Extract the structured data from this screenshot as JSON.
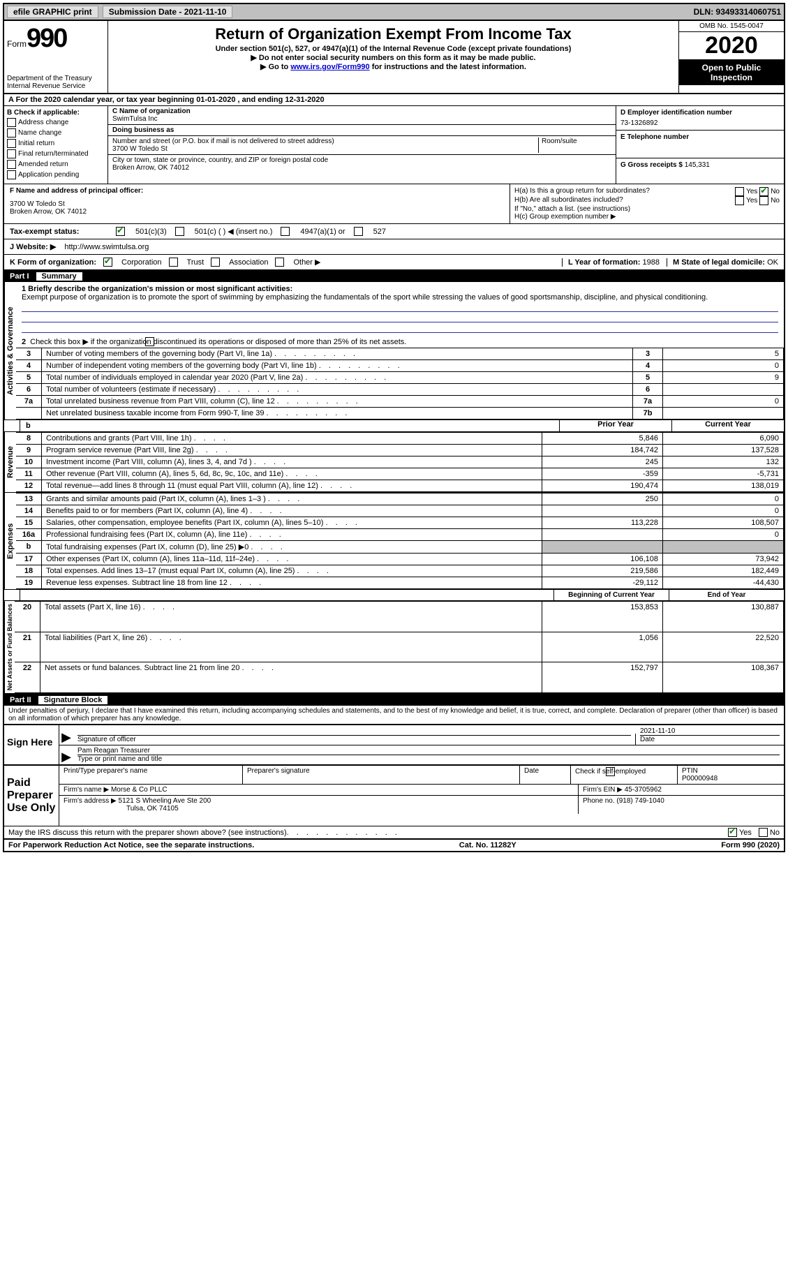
{
  "topbar": {
    "efile": "efile GRAPHIC print",
    "submission_label": "Submission Date - 2021-11-10",
    "dln": "DLN: 93493314060751"
  },
  "header": {
    "form_label": "Form",
    "form_number": "990",
    "dept": "Department of the Treasury",
    "irs": "Internal Revenue Service",
    "title": "Return of Organization Exempt From Income Tax",
    "sub1": "Under section 501(c), 527, or 4947(a)(1) of the Internal Revenue Code (except private foundations)",
    "sub2": "▶ Do not enter social security numbers on this form as it may be made public.",
    "sub3_prefix": "▶ Go to ",
    "sub3_link": "www.irs.gov/Form990",
    "sub3_suffix": " for instructions and the latest information.",
    "omb": "OMB No. 1545-0047",
    "year": "2020",
    "open": "Open to Public Inspection"
  },
  "section_a": "A For the 2020 calendar year, or tax year beginning 01-01-2020    , and ending 12-31-2020",
  "section_b": {
    "label": "B Check if applicable:",
    "items": [
      "Address change",
      "Name change",
      "Initial return",
      "Final return/terminated",
      "Amended return",
      "Application pending"
    ]
  },
  "section_c": {
    "name_label": "C Name of organization",
    "name": "SwimTulsa Inc",
    "dba_label": "Doing business as",
    "dba": "",
    "street_label": "Number and street (or P.O. box if mail is not delivered to street address)",
    "room_label": "Room/suite",
    "street": "3700 W Toledo St",
    "city_label": "City or town, state or province, country, and ZIP or foreign postal code",
    "city": "Broken Arrow, OK  74012"
  },
  "section_d": {
    "label": "D Employer identification number",
    "value": "73-1326892"
  },
  "section_e": {
    "label": "E Telephone number",
    "value": ""
  },
  "section_g": {
    "label": "G Gross receipts $",
    "value": "145,331"
  },
  "section_f": {
    "label": "F  Name and address of principal officer:",
    "addr1": "3700 W Toledo St",
    "addr2": "Broken Arrow, OK  74012"
  },
  "section_h": {
    "ha": "H(a)  Is this a group return for subordinates?",
    "hb": "H(b)  Are all subordinates included?",
    "hb_note": "If \"No,\" attach a list. (see instructions)",
    "hc": "H(c)  Group exemption number ▶",
    "yes": "Yes",
    "no": "No"
  },
  "tax_status": {
    "label": "Tax-exempt status:",
    "opt1": "501(c)(3)",
    "opt2": "501(c) (   ) ◀ (insert no.)",
    "opt3": "4947(a)(1) or",
    "opt4": "527"
  },
  "section_j": {
    "label": "J    Website: ▶",
    "value": "http://www.swimtulsa.org"
  },
  "section_k": {
    "label": "K Form of organization:",
    "opts": [
      "Corporation",
      "Trust",
      "Association",
      "Other ▶"
    ]
  },
  "section_l": {
    "label": "L Year of formation:",
    "value": "1988"
  },
  "section_m": {
    "label": "M State of legal domicile:",
    "value": "OK"
  },
  "part1": {
    "label": "Part I",
    "title": "Summary",
    "line1_label": "1  Briefly describe the organization's mission or most significant activities:",
    "line1_text": "Exempt purpose of organization is to promote the sport of swimming by emphasizing the fundamentals of the sport while stressing the values of good sportsmanship, discipline, and physical conditioning.",
    "line2": "Check this box ▶       if the organization discontinued its operations or disposed of more than 25% of its net assets.",
    "col_prior": "Prior Year",
    "col_current": "Current Year",
    "col_begin": "Beginning of Current Year",
    "col_end": "End of Year",
    "rows_top": [
      {
        "n": "3",
        "desc": "Number of voting members of the governing body (Part VI, line 1a)",
        "box": "3",
        "val": "5"
      },
      {
        "n": "4",
        "desc": "Number of independent voting members of the governing body (Part VI, line 1b)",
        "box": "4",
        "val": "0"
      },
      {
        "n": "5",
        "desc": "Total number of individuals employed in calendar year 2020 (Part V, line 2a)",
        "box": "5",
        "val": "9"
      },
      {
        "n": "6",
        "desc": "Total number of volunteers (estimate if necessary)",
        "box": "6",
        "val": ""
      },
      {
        "n": "7a",
        "desc": "Total unrelated business revenue from Part VIII, column (C), line 12",
        "box": "7a",
        "val": "0"
      },
      {
        "n": "",
        "desc": "Net unrelated business taxable income from Form 990-T, line 39",
        "box": "7b",
        "val": ""
      }
    ],
    "rows_rev": [
      {
        "n": "8",
        "desc": "Contributions and grants (Part VIII, line 1h)",
        "p": "5,846",
        "c": "6,090"
      },
      {
        "n": "9",
        "desc": "Program service revenue (Part VIII, line 2g)",
        "p": "184,742",
        "c": "137,528"
      },
      {
        "n": "10",
        "desc": "Investment income (Part VIII, column (A), lines 3, 4, and 7d )",
        "p": "245",
        "c": "132"
      },
      {
        "n": "11",
        "desc": "Other revenue (Part VIII, column (A), lines 5, 6d, 8c, 9c, 10c, and 11e)",
        "p": "-359",
        "c": "-5,731"
      },
      {
        "n": "12",
        "desc": "Total revenue—add lines 8 through 11 (must equal Part VIII, column (A), line 12)",
        "p": "190,474",
        "c": "138,019"
      }
    ],
    "rows_exp": [
      {
        "n": "13",
        "desc": "Grants and similar amounts paid (Part IX, column (A), lines 1–3 )",
        "p": "250",
        "c": "0"
      },
      {
        "n": "14",
        "desc": "Benefits paid to or for members (Part IX, column (A), line 4)",
        "p": "",
        "c": "0"
      },
      {
        "n": "15",
        "desc": "Salaries, other compensation, employee benefits (Part IX, column (A), lines 5–10)",
        "p": "113,228",
        "c": "108,507"
      },
      {
        "n": "16a",
        "desc": "Professional fundraising fees (Part IX, column (A), line 11e)",
        "p": "",
        "c": "0"
      },
      {
        "n": "b",
        "desc": "Total fundraising expenses (Part IX, column (D), line 25) ▶0",
        "p": "",
        "c": "",
        "shaded": true
      },
      {
        "n": "17",
        "desc": "Other expenses (Part IX, column (A), lines 11a–11d, 11f–24e)",
        "p": "106,108",
        "c": "73,942"
      },
      {
        "n": "18",
        "desc": "Total expenses. Add lines 13–17 (must equal Part IX, column (A), line 25)",
        "p": "219,586",
        "c": "182,449"
      },
      {
        "n": "19",
        "desc": "Revenue less expenses. Subtract line 18 from line 12",
        "p": "-29,112",
        "c": "-44,430"
      }
    ],
    "rows_net": [
      {
        "n": "20",
        "desc": "Total assets (Part X, line 16)",
        "p": "153,853",
        "c": "130,887"
      },
      {
        "n": "21",
        "desc": "Total liabilities (Part X, line 26)",
        "p": "1,056",
        "c": "22,520"
      },
      {
        "n": "22",
        "desc": "Net assets or fund balances. Subtract line 21 from line 20",
        "p": "152,797",
        "c": "108,367"
      }
    ],
    "vlabels": {
      "gov": "Activities & Governance",
      "rev": "Revenue",
      "exp": "Expenses",
      "net": "Net Assets or Fund Balances"
    }
  },
  "part2": {
    "label": "Part II",
    "title": "Signature Block",
    "declaration": "Under penalties of perjury, I declare that I have examined this return, including accompanying schedules and statements, and to the best of my knowledge and belief, it is true, correct, and complete. Declaration of preparer (other than officer) is based on all information of which preparer has any knowledge."
  },
  "sign": {
    "here": "Sign Here",
    "sig_officer": "Signature of officer",
    "date": "Date",
    "date_val": "2021-11-10",
    "name": "Pam Reagan  Treasurer",
    "type_label": "Type or print name and title"
  },
  "paid": {
    "label": "Paid Preparer Use Only",
    "print_label": "Print/Type preparer's name",
    "sig_label": "Preparer's signature",
    "date_label": "Date",
    "check_label": "Check        if self-employed",
    "ptin_label": "PTIN",
    "ptin": "P00000948",
    "firm_name_label": "Firm's name    ▶",
    "firm_name": "Morse & Co PLLC",
    "firm_ein_label": "Firm's EIN ▶",
    "firm_ein": "45-3705962",
    "firm_addr_label": "Firm's address ▶",
    "firm_addr1": "5121 S Wheeling Ave Ste 200",
    "firm_addr2": "Tulsa, OK  74105",
    "phone_label": "Phone no.",
    "phone": "(918) 749-1040"
  },
  "discuss": {
    "text": "May the IRS discuss this return with the preparer shown above? (see instructions)",
    "yes": "Yes",
    "no": "No"
  },
  "footer": {
    "left": "For Paperwork Reduction Act Notice, see the separate instructions.",
    "mid": "Cat. No. 11282Y",
    "right": "Form 990 (2020)"
  },
  "colors": {
    "link": "#0000cc",
    "shade": "#c0c0c0",
    "check": "#008000"
  }
}
